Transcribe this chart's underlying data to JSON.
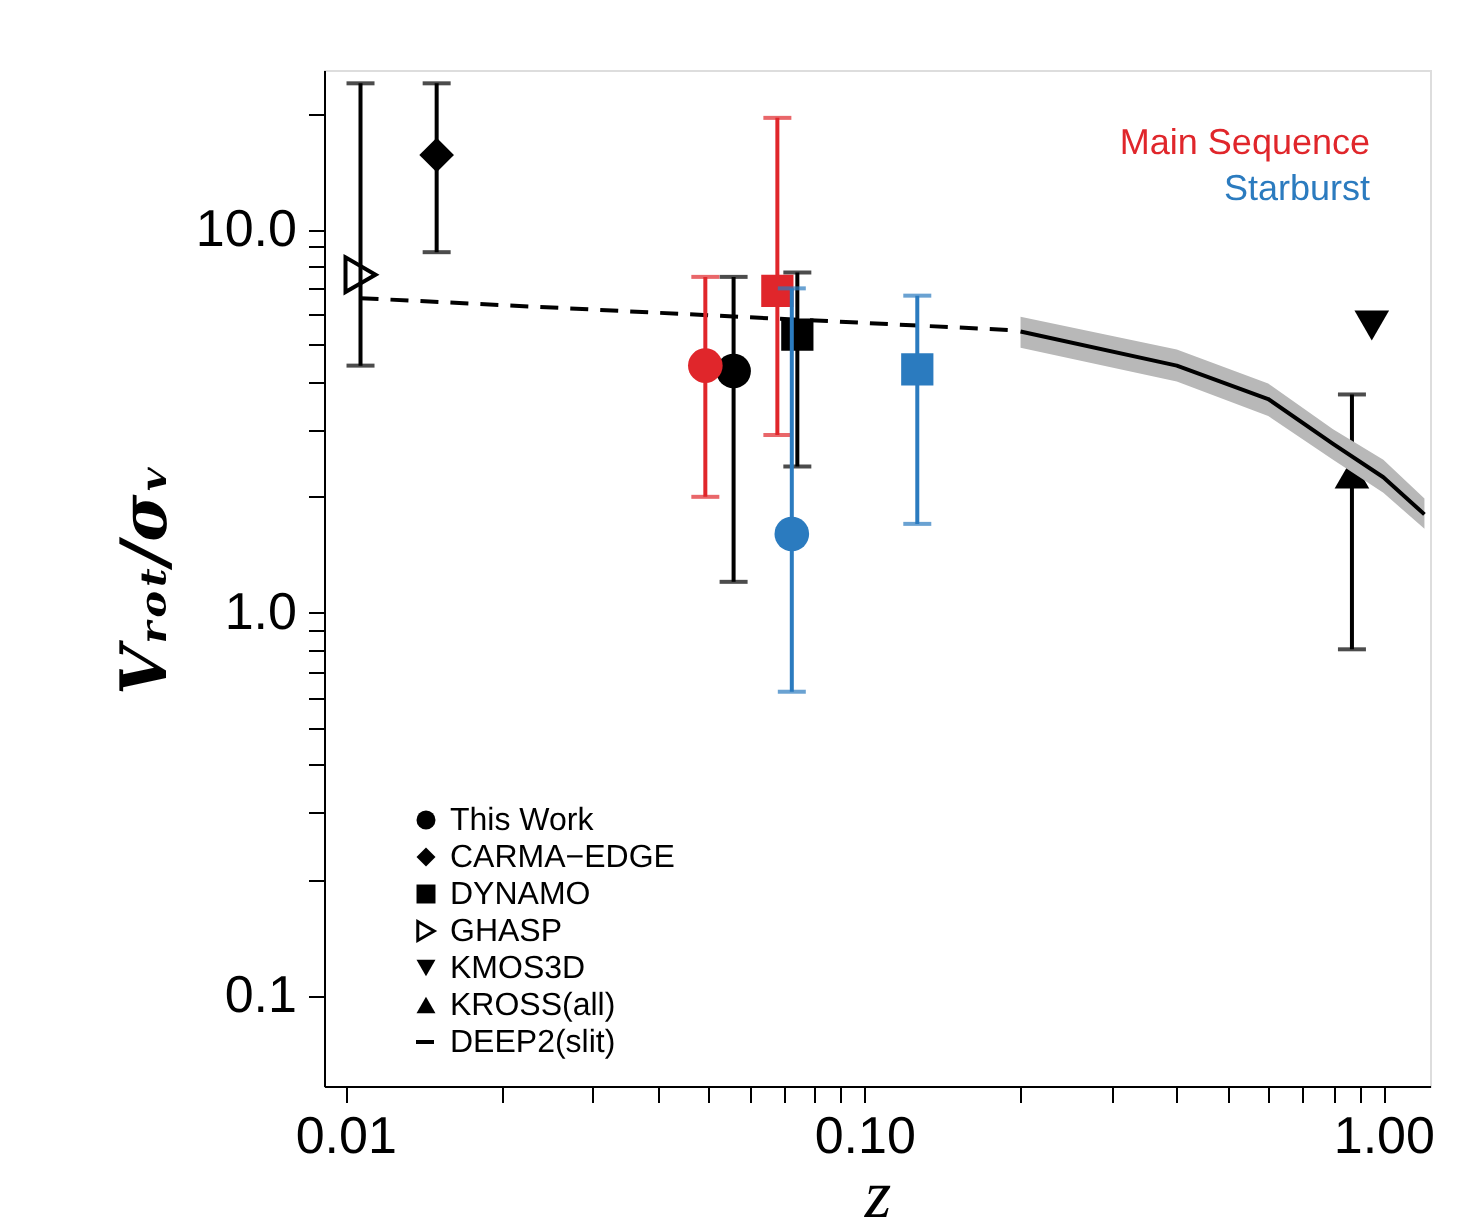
{
  "chart_data": {
    "type": "scatter",
    "xlabel": "z",
    "ylabel": "Vᵣₒₜ/σᵥ",
    "log": "xy",
    "grid": false,
    "legend": "bottom left",
    "xlim": [
      0.0091,
      1.23
    ],
    "ylim": [
      0.058,
      26
    ],
    "xticks": [
      {
        "value": 0.01,
        "label": "0.01"
      },
      {
        "value": 0.02,
        "label": null
      },
      {
        "value": 0.03,
        "label": null
      },
      {
        "value": 0.04,
        "label": null
      },
      {
        "value": 0.05,
        "label": null
      },
      {
        "value": 0.06,
        "label": null
      },
      {
        "value": 0.07,
        "label": null
      },
      {
        "value": 0.08,
        "label": null
      },
      {
        "value": 0.09,
        "label": null
      },
      {
        "value": 0.1,
        "label": "0.10"
      },
      {
        "value": 0.2,
        "label": null
      },
      {
        "value": 0.3,
        "label": null
      },
      {
        "value": 0.4,
        "label": null
      },
      {
        "value": 0.5,
        "label": null
      },
      {
        "value": 0.6,
        "label": null
      },
      {
        "value": 0.7,
        "label": null
      },
      {
        "value": 0.8,
        "label": null
      },
      {
        "value": 0.9,
        "label": null
      },
      {
        "value": 1,
        "label": "1.00"
      }
    ],
    "yticks": [
      {
        "value": 0.1,
        "label": "0.1"
      },
      {
        "value": 0.2,
        "label": null
      },
      {
        "value": 0.3,
        "label": null
      },
      {
        "value": 0.4,
        "label": null
      },
      {
        "value": 0.5,
        "label": null
      },
      {
        "value": 0.6,
        "label": null
      },
      {
        "value": 0.7,
        "label": null
      },
      {
        "value": 0.8,
        "label": null
      },
      {
        "value": 0.9,
        "label": null
      },
      {
        "value": 1,
        "label": "1.0"
      },
      {
        "value": 2,
        "label": null
      },
      {
        "value": 3,
        "label": null
      },
      {
        "value": 4,
        "label": null
      },
      {
        "value": 5,
        "label": null
      },
      {
        "value": 6,
        "label": null
      },
      {
        "value": 7,
        "label": null
      },
      {
        "value": 8,
        "label": null
      },
      {
        "value": 9,
        "label": null
      },
      {
        "value": 10,
        "label": "10.0"
      },
      {
        "value": 20,
        "label": null
      }
    ],
    "series": [
      {
        "name": "This Work",
        "marker": "circle",
        "color": "#000000",
        "x": [
          0.056
        ],
        "values": [
          4.26
        ],
        "errors": [
          [
            1.2,
            7.5
          ]
        ]
      },
      {
        "name": "CARMA−EDGE",
        "marker": "diamond",
        "color": "#000000",
        "x": [
          0.015
        ],
        "values": [
          15.6
        ],
        "errors": [
          [
            8.7,
            24
          ]
        ]
      },
      {
        "name": "DYNAMO",
        "marker": "square",
        "color": "#000000",
        "x": [
          0.0743
        ],
        "values": [
          5.3
        ],
        "errors": [
          [
            2.4,
            7.7
          ]
        ]
      },
      {
        "name": "GHASP",
        "marker": "triangle-right",
        "color": "#000000",
        "x": [
          0.0107
        ],
        "values": [
          7.6
        ],
        "errors": [
          [
            4.4,
            24
          ]
        ]
      },
      {
        "name": "KMOS3D",
        "marker": "triangle-down",
        "color": "#000000",
        "x": [
          0.95
        ],
        "values": [
          5.6
        ]
      },
      {
        "name": "KROSS(all)",
        "marker": "triangle",
        "color": "#000000",
        "x": [
          0.87
        ],
        "values": [
          2.3
        ],
        "errors": [
          [
            0.8,
            3.7
          ]
        ]
      },
      {
        "name": "DEEP2(slit)",
        "type": "line",
        "line_style": "solid",
        "color": "#000000",
        "x": [
          0.2,
          0.4,
          0.6,
          0.8,
          1.0,
          1.2
        ],
        "values": [
          5.4,
          4.4,
          3.6,
          2.75,
          2.25,
          1.8
        ],
        "lower": [
          4.9,
          4.0,
          3.25,
          2.5,
          2.05,
          1.65
        ],
        "upper": [
          5.9,
          4.85,
          3.95,
          3.0,
          2.5,
          1.98
        ]
      },
      {
        "type": "line",
        "line_style": "dashed",
        "color": "#000000",
        "x": [
          0.0107,
          0.19
        ],
        "values": [
          6.6,
          5.45
        ]
      },
      {
        "name": "Main Sequence",
        "marker": [
          "circle",
          "square"
        ],
        "color": "#e0262b",
        "x": [
          0.0494,
          0.068
        ],
        "values": [
          4.4,
          6.9
        ],
        "errors": [
          [
            2.0,
            7.5
          ],
          [
            2.9,
            19.5
          ]
        ]
      },
      {
        "name": "Starburst",
        "marker": [
          "circle",
          "square"
        ],
        "color": "#2b7bbf",
        "x": [
          0.0725,
          0.1265
        ],
        "values": [
          1.6,
          4.3
        ],
        "errors": [
          [
            0.62,
            7.0
          ],
          [
            1.7,
            6.7
          ]
        ]
      }
    ]
  }
}
